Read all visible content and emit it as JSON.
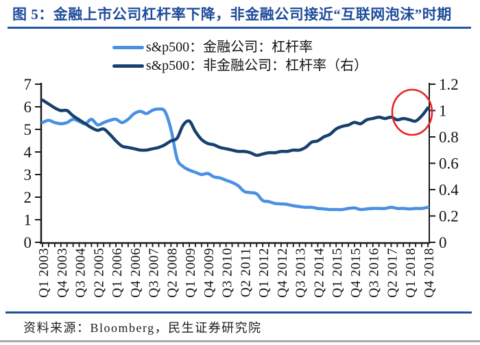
{
  "page": {
    "title": "图 5：金融上市公司杠杆率下降，非金融公司接近“互联网泡沫”时期",
    "source": "资料来源：Bloomberg，民生证券研究院"
  },
  "colors": {
    "title_blue": "#1d4c9a",
    "rule_blue": "#2155a3",
    "bottom_rule_blue": "#1f4e9b",
    "divider_gray": "#a6a6a6",
    "axis_black": "#1a1a1a",
    "financial_line": "#4a90e2",
    "nonfinancial_line": "#17406e",
    "highlight_red": "#ec2024"
  },
  "chart_data": {
    "type": "line",
    "title": "",
    "xlabel": "",
    "ylabel": "",
    "grid": false,
    "legend_position": "top",
    "x_quarters": [
      "Q1 2003",
      "Q2 2003",
      "Q3 2003",
      "Q4 2003",
      "Q1 2004",
      "Q2 2004",
      "Q3 2004",
      "Q4 2004",
      "Q1 2005",
      "Q2 2005",
      "Q3 2005",
      "Q4 2005",
      "Q1 2006",
      "Q2 2006",
      "Q3 2006",
      "Q4 2006",
      "Q1 2007",
      "Q2 2007",
      "Q3 2007",
      "Q4 2007",
      "Q1 2008",
      "Q2 2008",
      "Q3 2008",
      "Q4 2008",
      "Q1 2009",
      "Q2 2009",
      "Q3 2009",
      "Q4 2009",
      "Q1 2010",
      "Q2 2010",
      "Q3 2010",
      "Q4 2010",
      "Q1 2011",
      "Q2 2011",
      "Q3 2011",
      "Q4 2011",
      "Q1 2012",
      "Q2 2012",
      "Q3 2012",
      "Q4 2012",
      "Q1 2013",
      "Q2 2013",
      "Q3 2013",
      "Q4 2013",
      "Q1 2014",
      "Q2 2014",
      "Q3 2014",
      "Q4 2014",
      "Q1 2015",
      "Q2 2015",
      "Q3 2015",
      "Q4 2015",
      "Q1 2016",
      "Q2 2016",
      "Q3 2016",
      "Q4 2016",
      "Q1 2017",
      "Q2 2017",
      "Q3 2017",
      "Q4 2017",
      "Q1 2018",
      "Q2 2018",
      "Q3 2018",
      "Q4 2018"
    ],
    "x_tick_labels": [
      "Q1 2003",
      "Q4 2003",
      "Q3 2004",
      "Q2 2005",
      "Q1 2006",
      "Q4 2006",
      "Q3 2007",
      "Q2 2008",
      "Q1 2009",
      "Q4 2009",
      "Q3 2010",
      "Q2 2011",
      "Q1 2012",
      "Q4 2012",
      "Q3 2013",
      "Q2 2014",
      "Q1 2015",
      "Q4 2015",
      "Q3 2016",
      "Q2 2017",
      "Q1 2018",
      "Q4 2018"
    ],
    "x_tick_step": 3,
    "left_axis": {
      "min": 0,
      "max": 7,
      "ticks": [
        "0",
        "1",
        "2",
        "3",
        "4",
        "5",
        "6",
        "7"
      ]
    },
    "right_axis": {
      "min": 0,
      "max": 1.2,
      "ticks": [
        "0",
        "0.2",
        "0.4",
        "0.6",
        "0.8",
        "1",
        "1.2"
      ]
    },
    "series": [
      {
        "name": "s&p500：金融公司：杠杆率",
        "axis": "left",
        "color": "#4a90e2",
        "values": [
          5.3,
          5.4,
          5.3,
          5.25,
          5.3,
          5.45,
          5.35,
          5.25,
          5.45,
          5.2,
          5.3,
          5.4,
          5.45,
          5.3,
          5.45,
          5.7,
          5.8,
          5.7,
          5.85,
          5.9,
          5.8,
          5.0,
          3.7,
          3.35,
          3.2,
          3.1,
          3.0,
          3.05,
          2.9,
          2.85,
          2.75,
          2.65,
          2.5,
          2.25,
          2.2,
          2.15,
          1.85,
          1.8,
          1.72,
          1.7,
          1.68,
          1.62,
          1.58,
          1.55,
          1.55,
          1.5,
          1.48,
          1.45,
          1.45,
          1.45,
          1.5,
          1.52,
          1.45,
          1.48,
          1.5,
          1.5,
          1.5,
          1.55,
          1.5,
          1.5,
          1.48,
          1.5,
          1.5,
          1.55
        ]
      },
      {
        "name": "s&p500：非金融公司：杠杆率（右）",
        "axis": "right",
        "color": "#17406e",
        "values": [
          1.08,
          1.05,
          1.02,
          1.0,
          1.0,
          0.96,
          0.93,
          0.9,
          0.87,
          0.85,
          0.86,
          0.82,
          0.77,
          0.73,
          0.72,
          0.71,
          0.7,
          0.7,
          0.71,
          0.72,
          0.74,
          0.77,
          0.79,
          0.89,
          0.92,
          0.84,
          0.78,
          0.75,
          0.74,
          0.72,
          0.71,
          0.7,
          0.69,
          0.69,
          0.68,
          0.66,
          0.67,
          0.68,
          0.68,
          0.69,
          0.69,
          0.7,
          0.7,
          0.72,
          0.76,
          0.77,
          0.8,
          0.82,
          0.86,
          0.88,
          0.89,
          0.91,
          0.9,
          0.93,
          0.94,
          0.95,
          0.94,
          0.95,
          0.93,
          0.94,
          0.93,
          0.92,
          0.96,
          1.02
        ]
      }
    ],
    "annotation": {
      "type": "ellipse",
      "color": "#ec2024",
      "highlights": "end of non-financial leverage series (2018) rising toward 1.0"
    }
  }
}
